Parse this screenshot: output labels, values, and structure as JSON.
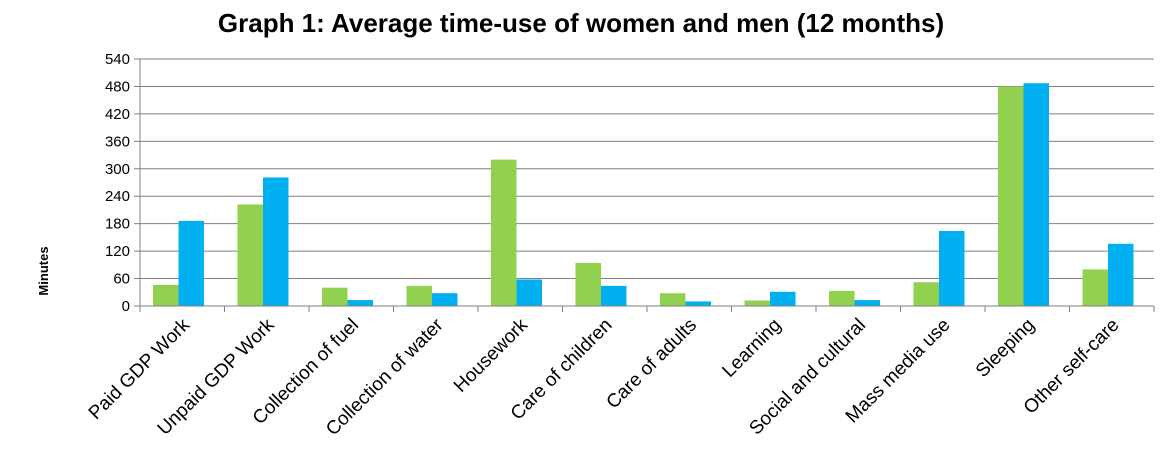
{
  "chart_data": {
    "type": "bar",
    "title": "Graph 1: Average time-use of women and men (12 months)",
    "xlabel": "",
    "ylabel": "Minutes",
    "ylim": [
      0,
      540
    ],
    "yticks": [
      0,
      60,
      120,
      180,
      240,
      300,
      360,
      420,
      480,
      540
    ],
    "grid": true,
    "categories": [
      "Paid GDP Work",
      "Unpaid GDP Work",
      "Collection of fuel",
      "Collection of water",
      "Housework",
      "Care of children",
      "Care of adults",
      "Learning",
      "Social and cultural",
      "Mass media use",
      "Sleeping",
      "Other self-care"
    ],
    "series": [
      {
        "values": [
          46,
          222,
          40,
          44,
          320,
          94,
          28,
          12,
          33,
          52,
          480,
          80
        ],
        "color": "#92d050"
      },
      {
        "values": [
          186,
          281,
          13,
          28,
          58,
          44,
          10,
          31,
          13,
          164,
          487,
          136
        ],
        "color": "#00b0f0"
      }
    ]
  }
}
